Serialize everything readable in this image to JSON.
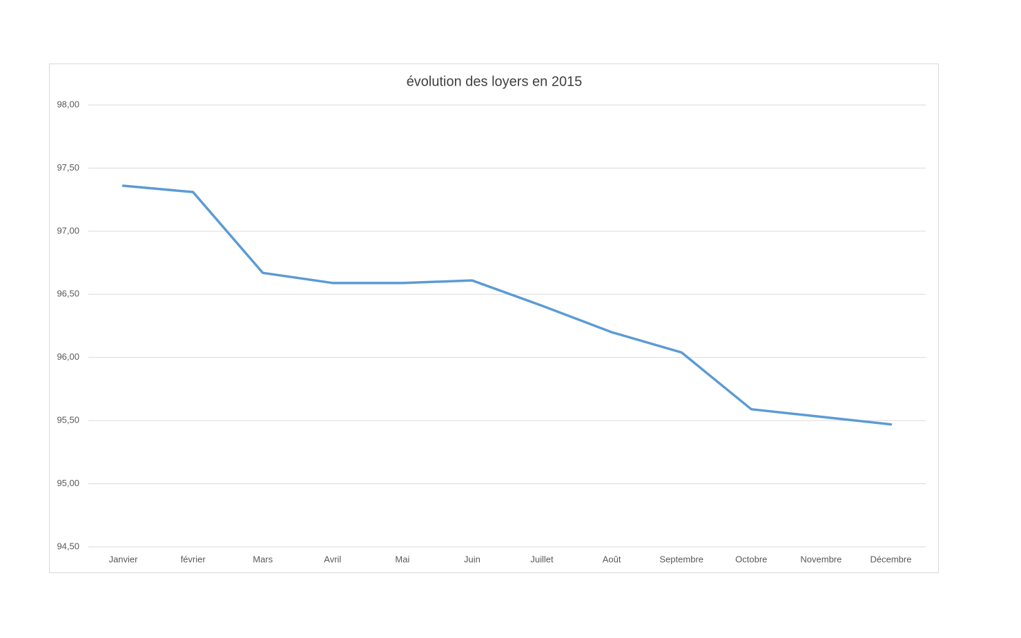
{
  "chart_data": {
    "type": "line",
    "title": "évolution des loyers en 2015",
    "categories": [
      "Janvier",
      "février",
      "Mars",
      "Avril",
      "Mai",
      "Juin",
      "Juillet",
      "Août",
      "Septembre",
      "Octobre",
      "Novembre",
      "Décembre"
    ],
    "values": [
      97.36,
      97.31,
      96.67,
      96.59,
      96.59,
      96.61,
      96.41,
      96.2,
      96.04,
      95.59,
      95.53,
      95.47
    ],
    "color": "#5b9bd5",
    "ylim": [
      94.5,
      98
    ],
    "yticks": [
      {
        "value": 94.5,
        "label": "94,50"
      },
      {
        "value": 95,
        "label": "95,00"
      },
      {
        "value": 95.5,
        "label": "95,50"
      },
      {
        "value": 96,
        "label": "96,00"
      },
      {
        "value": 96.5,
        "label": "96,50"
      },
      {
        "value": 97,
        "label": "97,00"
      },
      {
        "value": 97.5,
        "label": "97,50"
      },
      {
        "value": 98,
        "label": "98,00"
      }
    ],
    "grid": true
  }
}
